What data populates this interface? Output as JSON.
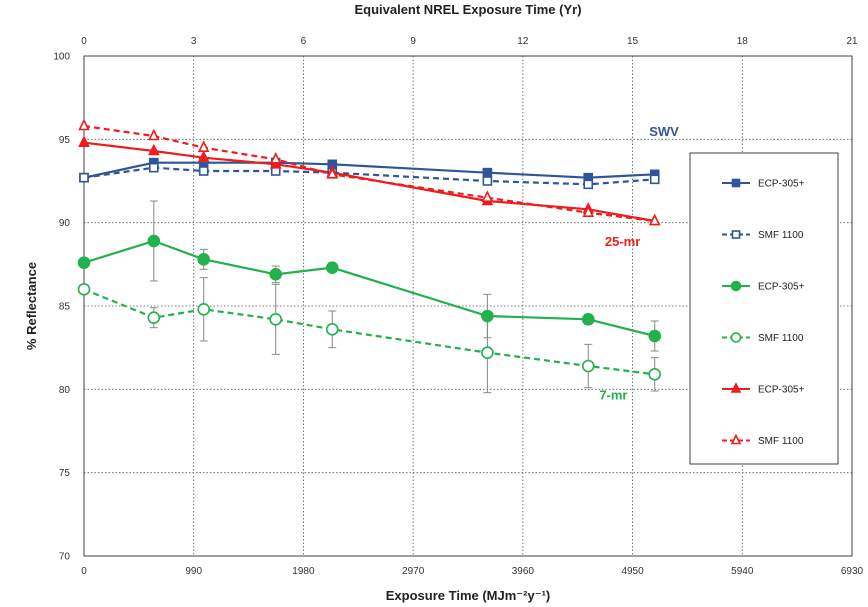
{
  "chart_data": {
    "type": "line",
    "xlabel": "Exposure Time (MJm⁻²y⁻¹)",
    "x2label": "Equivalent NREL Exposure Time (Yr)",
    "ylabel": "% Reflectance",
    "xlim": [
      0,
      6930
    ],
    "ylim": [
      70,
      100
    ],
    "x2lim": [
      0,
      21
    ],
    "x_ticks": [
      0,
      990,
      1980,
      2970,
      3960,
      4950,
      5940,
      6930
    ],
    "x_tick_labels": [
      "0",
      "990",
      "1980",
      "2970",
      "3960",
      "4950",
      "5940",
      "6930"
    ],
    "x2_ticks": [
      0,
      3,
      6,
      9,
      12,
      15,
      18,
      21
    ],
    "x2_tick_labels": [
      "0",
      "3",
      "6",
      "9",
      "12",
      "15",
      "18",
      "21"
    ],
    "y_ticks": [
      70,
      75,
      80,
      85,
      90,
      95,
      100
    ],
    "y_tick_labels": [
      "70",
      "75",
      "80",
      "85",
      "90",
      "95",
      "100"
    ],
    "grid": true,
    "legend_position": "right",
    "series": [
      {
        "name": "ECP-305+",
        "color": "#2e5597",
        "marker": "square",
        "filled": true,
        "dash": false,
        "x": [
          0,
          630,
          1080,
          1730,
          2240,
          3640,
          4550,
          5150
        ],
        "y": [
          92.7,
          93.6,
          93.6,
          93.6,
          93.5,
          93.0,
          92.7,
          92.9
        ]
      },
      {
        "name": "SMF 1100",
        "color": "#2e5597",
        "marker": "square",
        "filled": false,
        "dash": true,
        "x": [
          0,
          630,
          1080,
          1730,
          2240,
          3640,
          4550,
          5150
        ],
        "y": [
          92.7,
          93.3,
          93.1,
          93.1,
          93.0,
          92.5,
          92.3,
          92.6
        ]
      },
      {
        "name": "ECP-305+",
        "color": "#22b14c",
        "marker": "circle",
        "filled": true,
        "dash": false,
        "x": [
          0,
          630,
          1080,
          1730,
          2240,
          3640,
          4550,
          5150
        ],
        "y": [
          87.6,
          88.9,
          87.8,
          86.9,
          87.3,
          84.4,
          84.2,
          83.2
        ],
        "error": [
          0,
          2.4,
          0.6,
          0.5,
          0,
          1.3,
          0.3,
          0.9
        ]
      },
      {
        "name": "SMF 1100",
        "color": "#22b14c",
        "marker": "circle",
        "filled": false,
        "dash": true,
        "x": [
          0,
          630,
          1080,
          1730,
          2240,
          3640,
          4550,
          5150
        ],
        "y": [
          86.0,
          84.3,
          84.8,
          84.2,
          83.6,
          82.2,
          81.4,
          80.9
        ],
        "error": [
          0,
          0.6,
          1.9,
          2.1,
          1.1,
          2.4,
          1.3,
          1.0
        ]
      },
      {
        "name": "ECP-305+",
        "color": "#ee1c1c",
        "marker": "triangle",
        "filled": true,
        "dash": false,
        "x": [
          0,
          630,
          1080,
          1730,
          2240,
          3640,
          4550,
          5150
        ],
        "y": [
          94.8,
          94.3,
          93.9,
          93.5,
          93.0,
          91.3,
          90.8,
          90.1
        ]
      },
      {
        "name": "SMF 1100",
        "color": "#ee1c1c",
        "marker": "triangle",
        "filled": false,
        "dash": true,
        "x": [
          0,
          630,
          1080,
          1730,
          2240,
          3640,
          4550,
          5150
        ],
        "y": [
          95.8,
          95.2,
          94.5,
          93.8,
          92.9,
          91.5,
          90.6,
          90.1
        ]
      }
    ],
    "annotations": [
      {
        "text": "SWV",
        "x": 5100,
        "y": 95.2,
        "color": "#2e5597"
      },
      {
        "text": "25-mr",
        "x": 4700,
        "y": 88.6,
        "color": "#ee1c1c"
      },
      {
        "text": "7-mr",
        "x": 4650,
        "y": 79.4,
        "color": "#22b14c"
      }
    ]
  }
}
